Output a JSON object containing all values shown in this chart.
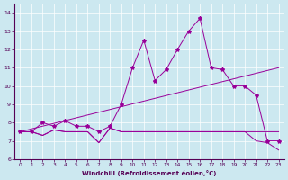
{
  "bg_color": "#cce8f0",
  "line_color": "#990099",
  "xlabel": "Windchill (Refroidissement éolien,°C)",
  "ylim": [
    6,
    14.5
  ],
  "xlim": [
    -0.5,
    23.5
  ],
  "yticks": [
    6,
    7,
    8,
    9,
    10,
    11,
    12,
    13,
    14
  ],
  "xticks": [
    0,
    1,
    2,
    3,
    4,
    5,
    6,
    7,
    8,
    9,
    10,
    11,
    12,
    13,
    14,
    15,
    16,
    17,
    18,
    19,
    20,
    21,
    22,
    23
  ],
  "line1_x": [
    0,
    1,
    2,
    3,
    4,
    5,
    6,
    7,
    8,
    9,
    10,
    11,
    12,
    13,
    14,
    15,
    16,
    17,
    18,
    19,
    20,
    21,
    22,
    23
  ],
  "line1_y": [
    7.5,
    7.5,
    7.3,
    7.6,
    7.5,
    7.5,
    7.5,
    6.9,
    7.7,
    7.5,
    7.5,
    7.5,
    7.5,
    7.5,
    7.5,
    7.5,
    7.5,
    7.5,
    7.5,
    7.5,
    7.5,
    7.5,
    7.5,
    7.5
  ],
  "line2_x": [
    0,
    1,
    2,
    3,
    4,
    5,
    6,
    7,
    8,
    9,
    10,
    11,
    12,
    13,
    14,
    15,
    16,
    17,
    18,
    19,
    20,
    21,
    22,
    23
  ],
  "line2_y": [
    7.5,
    7.5,
    7.3,
    7.6,
    7.5,
    7.5,
    7.5,
    6.9,
    7.7,
    7.5,
    7.5,
    7.5,
    7.5,
    7.5,
    7.5,
    7.5,
    7.5,
    7.5,
    7.5,
    7.5,
    7.5,
    7.0,
    6.9,
    6.5
  ],
  "line3_x": [
    0,
    1,
    2,
    3,
    4,
    5,
    6,
    7,
    8,
    9,
    10,
    11,
    12,
    13,
    14,
    15,
    16,
    17,
    18,
    19,
    20,
    21,
    22,
    23
  ],
  "line3_y": [
    7.5,
    7.5,
    8.0,
    7.8,
    8.1,
    7.8,
    7.8,
    7.5,
    7.8,
    9.0,
    11.0,
    12.5,
    10.3,
    10.9,
    12.0,
    13.0,
    13.7,
    11.0,
    10.9,
    10.0,
    10.0,
    9.5,
    7.0,
    7.0
  ],
  "line4_x": [
    0,
    23
  ],
  "line4_y": [
    7.5,
    11.0
  ]
}
